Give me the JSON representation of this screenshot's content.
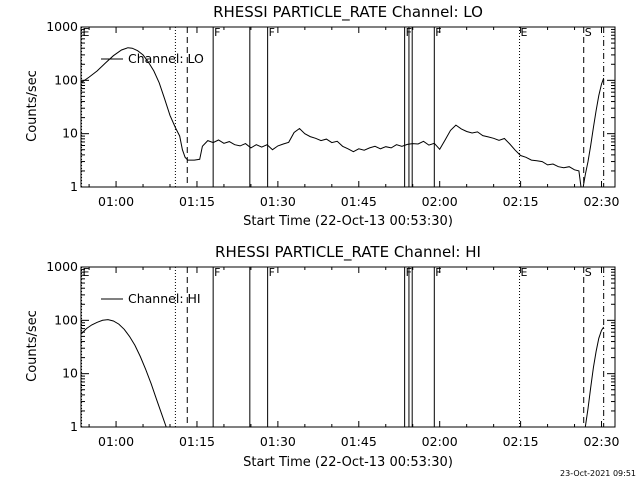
{
  "timestamp": "23-Oct-2021 09:51",
  "chart_data": [
    {
      "type": "line",
      "title": "RHESSI PARTICLE_RATE Channel: LO",
      "xlabel": "Start Time (22-Oct-13 00:53:30)",
      "ylabel": "Counts/sec",
      "yscale": "log",
      "ylim": [
        1,
        1000
      ],
      "xlim_minutes": [
        53.5,
        152.5
      ],
      "x_ticks": [
        {
          "m": 60,
          "label": "01:00"
        },
        {
          "m": 75,
          "label": "01:15"
        },
        {
          "m": 90,
          "label": "01:30"
        },
        {
          "m": 105,
          "label": "01:45"
        },
        {
          "m": 120,
          "label": "02:00"
        },
        {
          "m": 135,
          "label": "02:15"
        },
        {
          "m": 150,
          "label": "02:30"
        }
      ],
      "y_ticks": [
        {
          "v": 1,
          "label": "1"
        },
        {
          "v": 10,
          "label": "10"
        },
        {
          "v": 100,
          "label": "100"
        },
        {
          "v": 1000,
          "label": "1000"
        }
      ],
      "legend": "Channel: LO",
      "legend_position": "top-left",
      "markers": [
        {
          "m": 53.6,
          "label": "E",
          "style": "dotted"
        },
        {
          "m": 71.0,
          "label": "",
          "style": "dotted"
        },
        {
          "m": 73.2,
          "label": "",
          "style": "dashed"
        },
        {
          "m": 78.0,
          "label": "F",
          "style": "solid"
        },
        {
          "m": 84.8,
          "label": "",
          "style": "solid"
        },
        {
          "m": 88.1,
          "label": "F",
          "style": "solid"
        },
        {
          "m": 113.5,
          "label": "F",
          "style": "solid"
        },
        {
          "m": 114.3,
          "label": "",
          "style": "solid"
        },
        {
          "m": 114.9,
          "label": "",
          "style": "solid"
        },
        {
          "m": 119.0,
          "label": "F",
          "style": "solid"
        },
        {
          "m": 134.8,
          "label": "E",
          "style": "dotted"
        },
        {
          "m": 146.7,
          "label": "S",
          "style": "dashed"
        },
        {
          "m": 150.4,
          "label": "",
          "style": "dashdot"
        }
      ],
      "series": [
        {
          "name": "Channel: LO",
          "points": [
            [
              53.5,
              90
            ],
            [
              55,
              115
            ],
            [
              56.5,
              150
            ],
            [
              58,
              210
            ],
            [
              59.5,
              290
            ],
            [
              61,
              370
            ],
            [
              62.2,
              410
            ],
            [
              63,
              400
            ],
            [
              64,
              360
            ],
            [
              65,
              300
            ],
            [
              66,
              220
            ],
            [
              67,
              150
            ],
            [
              68,
              90
            ],
            [
              69,
              45
            ],
            [
              70,
              22
            ],
            [
              71,
              13
            ],
            [
              71.8,
              9
            ],
            [
              72.3,
              5
            ],
            [
              72.8,
              3.6
            ],
            [
              73.3,
              3.2
            ],
            [
              74.5,
              3.2
            ],
            [
              75.5,
              3.3
            ],
            [
              76,
              5.8
            ],
            [
              77,
              7.4
            ],
            [
              78,
              6.8
            ],
            [
              79,
              7.6
            ],
            [
              80,
              6.6
            ],
            [
              81,
              7.1
            ],
            [
              82,
              6.2
            ],
            [
              83,
              5.9
            ],
            [
              84,
              6.5
            ],
            [
              85,
              5.4
            ],
            [
              86,
              6.2
            ],
            [
              87,
              5.6
            ],
            [
              88,
              6.2
            ],
            [
              89,
              5.0
            ],
            [
              90,
              5.9
            ],
            [
              91,
              6.4
            ],
            [
              92,
              6.9
            ],
            [
              93,
              10.5
            ],
            [
              94,
              12.5
            ],
            [
              95,
              10
            ],
            [
              96,
              8.8
            ],
            [
              97,
              8.2
            ],
            [
              98,
              7.4
            ],
            [
              99,
              7.9
            ],
            [
              100,
              6.8
            ],
            [
              101,
              7.2
            ],
            [
              102,
              5.8
            ],
            [
              103,
              5.2
            ],
            [
              104,
              4.6
            ],
            [
              105,
              5.2
            ],
            [
              106,
              4.9
            ],
            [
              107,
              5.4
            ],
            [
              108,
              5.8
            ],
            [
              109,
              5.2
            ],
            [
              110,
              5.7
            ],
            [
              111,
              5.4
            ],
            [
              112,
              6.2
            ],
            [
              113,
              5.8
            ],
            [
              114,
              6.3
            ],
            [
              115,
              6.5
            ],
            [
              116,
              6.4
            ],
            [
              117,
              7.2
            ],
            [
              118,
              6.1
            ],
            [
              119,
              6.6
            ],
            [
              120,
              5.1
            ],
            [
              121,
              7.6
            ],
            [
              122,
              11.5
            ],
            [
              123,
              14.5
            ],
            [
              124,
              12.3
            ],
            [
              125,
              11
            ],
            [
              126,
              10.3
            ],
            [
              127,
              10.8
            ],
            [
              128,
              9.2
            ],
            [
              129,
              8.7
            ],
            [
              130,
              8.2
            ],
            [
              131,
              7.5
            ],
            [
              132,
              8.1
            ],
            [
              133,
              6.4
            ],
            [
              134,
              4.9
            ],
            [
              135,
              3.9
            ],
            [
              136,
              3.6
            ],
            [
              137,
              3.2
            ],
            [
              138,
              3.1
            ],
            [
              139,
              3.0
            ],
            [
              140,
              2.6
            ],
            [
              141,
              2.7
            ],
            [
              142,
              2.4
            ],
            [
              143,
              2.3
            ],
            [
              144,
              2.4
            ],
            [
              145,
              2.1
            ],
            [
              145.8,
              2.0
            ],
            [
              146.2,
              1.0
            ],
            [
              146.6,
              1.0
            ],
            [
              147,
              1.7
            ],
            [
              147.5,
              3
            ],
            [
              148,
              6
            ],
            [
              148.5,
              13
            ],
            [
              149,
              27
            ],
            [
              149.5,
              52
            ],
            [
              150,
              85
            ],
            [
              150.4,
              110
            ]
          ]
        }
      ]
    },
    {
      "type": "line",
      "title": "RHESSI PARTICLE_RATE Channel: HI",
      "xlabel": "Start Time (22-Oct-13 00:53:30)",
      "ylabel": "Counts/sec",
      "yscale": "log",
      "ylim": [
        1,
        1000
      ],
      "xlim_minutes": [
        53.5,
        152.5
      ],
      "x_ticks": [
        {
          "m": 60,
          "label": "01:00"
        },
        {
          "m": 75,
          "label": "01:15"
        },
        {
          "m": 90,
          "label": "01:30"
        },
        {
          "m": 105,
          "label": "01:45"
        },
        {
          "m": 120,
          "label": "02:00"
        },
        {
          "m": 135,
          "label": "02:15"
        },
        {
          "m": 150,
          "label": "02:30"
        }
      ],
      "y_ticks": [
        {
          "v": 1,
          "label": "1"
        },
        {
          "v": 10,
          "label": "10"
        },
        {
          "v": 100,
          "label": "100"
        },
        {
          "v": 1000,
          "label": "1000"
        }
      ],
      "legend": "Channel: HI",
      "legend_position": "top-left",
      "markers": [
        {
          "m": 53.6,
          "label": "E",
          "style": "dotted"
        },
        {
          "m": 71.0,
          "label": "",
          "style": "dotted"
        },
        {
          "m": 73.2,
          "label": "",
          "style": "dashed"
        },
        {
          "m": 78.0,
          "label": "F",
          "style": "solid"
        },
        {
          "m": 84.8,
          "label": "",
          "style": "solid"
        },
        {
          "m": 88.1,
          "label": "F",
          "style": "solid"
        },
        {
          "m": 113.5,
          "label": "F",
          "style": "solid"
        },
        {
          "m": 114.3,
          "label": "",
          "style": "solid"
        },
        {
          "m": 114.9,
          "label": "",
          "style": "solid"
        },
        {
          "m": 119.0,
          "label": "F",
          "style": "solid"
        },
        {
          "m": 134.8,
          "label": "E",
          "style": "dotted"
        },
        {
          "m": 146.7,
          "label": "S",
          "style": "dashed"
        },
        {
          "m": 150.4,
          "label": "",
          "style": "dashdot"
        }
      ],
      "series": [
        {
          "name": "Channel: HI",
          "points": [
            [
              53.5,
              55
            ],
            [
              54.5,
              70
            ],
            [
              55.5,
              82
            ],
            [
              56.5,
              92
            ],
            [
              57.5,
              100
            ],
            [
              58.5,
              103
            ],
            [
              59.5,
              97
            ],
            [
              60.5,
              85
            ],
            [
              61.5,
              68
            ],
            [
              62.5,
              50
            ],
            [
              63.5,
              34
            ],
            [
              64.5,
              21
            ],
            [
              65.5,
              12
            ],
            [
              66.5,
              6.5
            ],
            [
              67.5,
              3.3
            ],
            [
              68.5,
              1.7
            ],
            [
              69.3,
              1.0
            ],
            null,
            [
              147,
              1.0
            ],
            [
              147.5,
              2.2
            ],
            [
              148,
              5.5
            ],
            [
              148.5,
              13
            ],
            [
              149,
              26
            ],
            [
              149.5,
              46
            ],
            [
              150,
              65
            ],
            [
              150.4,
              75
            ]
          ]
        }
      ]
    }
  ]
}
